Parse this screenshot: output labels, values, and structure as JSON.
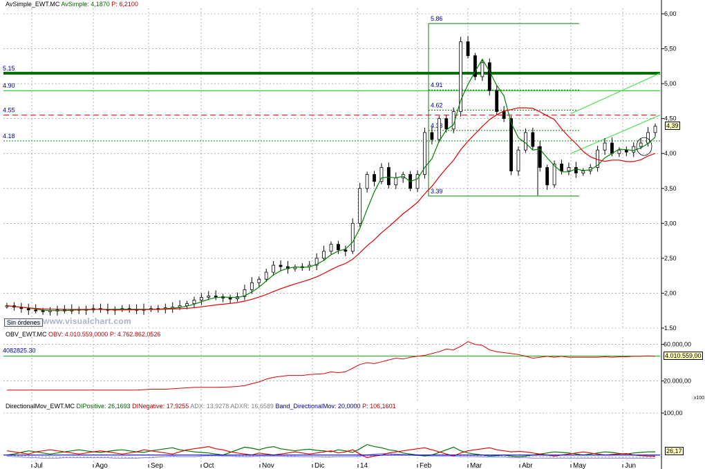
{
  "chart_data": {
    "type": "candlestick",
    "price_panel": {
      "header": {
        "name": "AvSimple_EWT.MC",
        "indicator": "AvSimple:",
        "value": "4,1870",
        "p_label": "P:",
        "p_value": "6,2100"
      },
      "y_ticks": [
        "6,00",
        "5,50",
        "5,00",
        "4,50",
        "4,00",
        "3,50",
        "3,00",
        "2,50",
        "2,00",
        "1,50"
      ],
      "ylim": [
        1.5,
        6.05
      ],
      "last_value": "4,39",
      "levels": [
        {
          "label": "5.15",
          "value": 5.15,
          "style": "thick"
        },
        {
          "label": "4.90",
          "value": 4.9,
          "style": "solid"
        },
        {
          "label": "4.55",
          "value": 4.55,
          "style": "dashed-red"
        },
        {
          "label": "4.18",
          "value": 4.18,
          "style": "dotted"
        }
      ],
      "fib_levels": [
        {
          "label": "5.86",
          "value": 5.86
        },
        {
          "label": "4.91",
          "value": 4.91
        },
        {
          "label": "4.62",
          "value": 4.62
        },
        {
          "label": "4.33",
          "value": 4.33
        },
        {
          "label": "3.39",
          "value": 3.39
        }
      ],
      "close_series": [
        1.82,
        1.8,
        1.78,
        1.76,
        1.75,
        1.74,
        1.75,
        1.76,
        1.75,
        1.76,
        1.77,
        1.76,
        1.78,
        1.77,
        1.76,
        1.77,
        1.78,
        1.77,
        1.76,
        1.77,
        1.78,
        1.77,
        1.79,
        1.8,
        1.82,
        1.85,
        1.9,
        1.94,
        1.96,
        1.95,
        1.93,
        1.92,
        1.95,
        2.05,
        2.15,
        2.2,
        2.3,
        2.4,
        2.38,
        2.35,
        2.37,
        2.38,
        2.4,
        2.5,
        2.6,
        2.7,
        2.62,
        2.6,
        3.0,
        3.5,
        3.7,
        3.6,
        3.8,
        3.55,
        3.65,
        3.7,
        3.5,
        3.7,
        4.3,
        4.2,
        4.5,
        4.35,
        4.6,
        5.6,
        5.4,
        5.1,
        5.3,
        4.9,
        4.6,
        4.5,
        3.75,
        4.05,
        4.3,
        4.1,
        3.8,
        3.55,
        3.85,
        3.75,
        3.8,
        3.72,
        3.75,
        3.8,
        4.05,
        4.15,
        4.0,
        4.05,
        4.02,
        4.1,
        4.15,
        4.3,
        4.39
      ]
    },
    "obv_panel": {
      "header": {
        "name": "OBV_EWT.MC",
        "indicator": "OBV:",
        "value": "4.010.559,0000",
        "p_label": "P:",
        "p_value": "4.762.862,0526"
      },
      "y_ticks": [
        "60.000,00",
        "20.000,00"
      ],
      "level_label": "4082825.30",
      "last_value": "4.010.559,00",
      "scale_label": "x100",
      "series": [
        10,
        10,
        10,
        10,
        10,
        10,
        10,
        10,
        10,
        10,
        10,
        10,
        10,
        10,
        10,
        10,
        10,
        10,
        10,
        10.5,
        11,
        11,
        11,
        11.5,
        12,
        12.5,
        13,
        13,
        13,
        13,
        13.2,
        13.5,
        14,
        15,
        17,
        19,
        22,
        24,
        25,
        26,
        26,
        26,
        27,
        27.5,
        28,
        30,
        29,
        30,
        34,
        38,
        40,
        39,
        41,
        43,
        45,
        44,
        46,
        47,
        48,
        50,
        52,
        55,
        54,
        58,
        63,
        60,
        59,
        54,
        52,
        51,
        50,
        49,
        47,
        45,
        46,
        47,
        46,
        47,
        46,
        46,
        46,
        46,
        46,
        46.5,
        46,
        46.5,
        46.5,
        47,
        47,
        47.5,
        47
      ]
    },
    "dmi_panel": {
      "header": {
        "name": "DirectionalMov_EWT.MC",
        "di_pos_label": "DIPositive:",
        "di_pos": "26,1693",
        "di_neg_label": "DINegative:",
        "di_neg": "17,9255",
        "adx_label": "ADX:",
        "adx": "13,9278",
        "adxr_label": "ADXR:",
        "adxr": "16,6589",
        "band_label": "Band_DirectionalMov:",
        "band": "20,0000",
        "p_label": "P:",
        "p_value": "106,1601"
      },
      "y_ticks": [
        "100,00"
      ],
      "last_value": "26,17",
      "di_pos_series": [
        20,
        22,
        25,
        28,
        26,
        24,
        22,
        24,
        26,
        28,
        30,
        28,
        26,
        25,
        27,
        29,
        30,
        28,
        26,
        25,
        28,
        30,
        32,
        34,
        30,
        28,
        26,
        25,
        24,
        22,
        20,
        25,
        30,
        35,
        33,
        30,
        34,
        36,
        32,
        30,
        28,
        30,
        31,
        29,
        28,
        26,
        30,
        28,
        25,
        32,
        40,
        36,
        34,
        30,
        28,
        24,
        22,
        20,
        18,
        20,
        25,
        30,
        35,
        28,
        24,
        22,
        20,
        18,
        19,
        20,
        18,
        17,
        18,
        20,
        22,
        24,
        26,
        25,
        24,
        22,
        20,
        22,
        24,
        26,
        25,
        23,
        22,
        24,
        25,
        26,
        26.17
      ],
      "di_neg_series": [
        28,
        26,
        24,
        22,
        26,
        28,
        30,
        28,
        26,
        24,
        22,
        24,
        26,
        28,
        26,
        24,
        22,
        24,
        26,
        30,
        28,
        26,
        24,
        22,
        26,
        30,
        32,
        34,
        36,
        32,
        30,
        26,
        24,
        22,
        20,
        24,
        22,
        20,
        22,
        24,
        26,
        24,
        22,
        24,
        26,
        28,
        24,
        26,
        30,
        22,
        15,
        18,
        20,
        24,
        26,
        28,
        30,
        32,
        34,
        30,
        26,
        22,
        18,
        24,
        28,
        30,
        32,
        34,
        30,
        28,
        26,
        27,
        26,
        24,
        22,
        20,
        18,
        20,
        22,
        24,
        26,
        24,
        22,
        20,
        21,
        22,
        23,
        20,
        19,
        18,
        17.93
      ],
      "adx_series": [
        18,
        17,
        16,
        15,
        15,
        14,
        14,
        14,
        15,
        15,
        15,
        15,
        15,
        15,
        15,
        14,
        14,
        14,
        14,
        15,
        15,
        16,
        17,
        18,
        17,
        17,
        17,
        18,
        19,
        19,
        18,
        18,
        17,
        17,
        17,
        18,
        18,
        18,
        18,
        17,
        17,
        17,
        17,
        17,
        16,
        16,
        17,
        17,
        17,
        18,
        20,
        22,
        23,
        23,
        22,
        21,
        20,
        19,
        19,
        18,
        18,
        18,
        18,
        17,
        17,
        17,
        16,
        16,
        16,
        16,
        15,
        15,
        15,
        14,
        14,
        14,
        14,
        14,
        14,
        14,
        14,
        14,
        14,
        14,
        14,
        14,
        14,
        14,
        14,
        14,
        13.93
      ],
      "adxr_series": [
        20,
        19,
        18,
        18,
        17,
        17,
        16,
        16,
        16,
        16,
        16,
        16,
        16,
        16,
        16,
        16,
        16,
        15,
        15,
        15,
        16,
        16,
        17,
        17,
        17,
        17,
        17,
        18,
        18,
        18,
        18,
        18,
        18,
        18,
        18,
        18,
        18,
        18,
        18,
        18,
        18,
        17,
        17,
        17,
        17,
        17,
        17,
        17,
        17,
        17,
        18,
        19,
        20,
        21,
        21,
        21,
        21,
        20,
        20,
        20,
        20,
        20,
        20,
        19,
        19,
        19,
        18,
        18,
        18,
        18,
        17,
        17,
        17,
        17,
        17,
        17,
        16,
        16,
        16,
        16,
        16,
        16,
        16,
        16,
        16,
        16,
        16,
        16,
        16,
        16,
        16.66
      ],
      "band": 20
    },
    "x_labels": [
      "Jul",
      "Ago",
      "Sep",
      "Oct",
      "Nov",
      "Dic",
      "14",
      "Feb",
      "Mar",
      "Abr",
      "May",
      "Jun"
    ]
  },
  "ui": {
    "sin_ordenes": "Sin órdenes",
    "watermark": "www.visualchart.com"
  },
  "colors": {
    "candle": "#000000",
    "green_line": "#008000",
    "red_line": "#e00000",
    "level_green": "#00a000",
    "grid": "#808080",
    "dmi_pos": "#007000",
    "dmi_neg": "#e00000",
    "adx": "#0000b0",
    "adxr": "#a0a0a0"
  }
}
